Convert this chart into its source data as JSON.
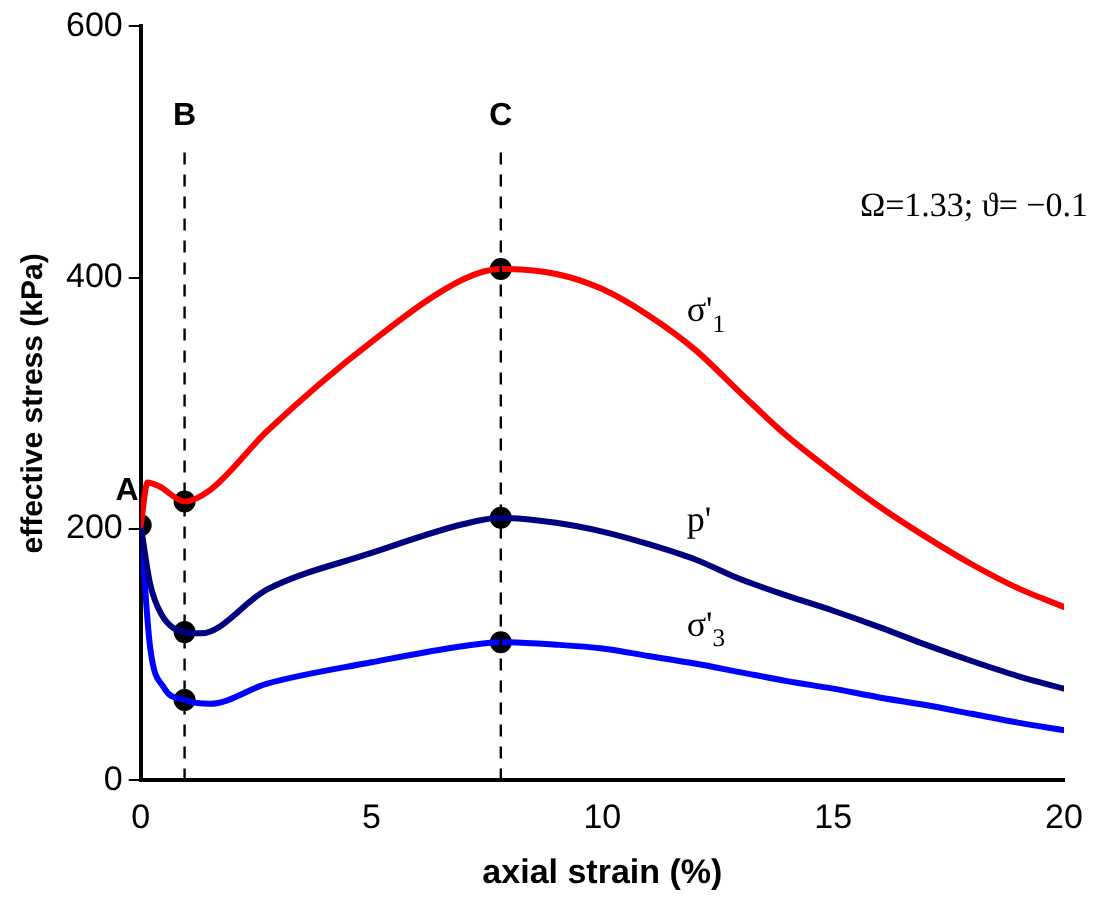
{
  "chart_data": {
    "type": "line",
    "xlabel": "axial strain (%)",
    "ylabel": "effective stress (kPa)",
    "xlim": [
      0,
      20
    ],
    "xticks": [
      0,
      5,
      10,
      15,
      20
    ],
    "ylim": [
      0,
      600
    ],
    "yticks": [
      0,
      200,
      400,
      600
    ],
    "grid": false,
    "legend": false,
    "marker": "none",
    "line_style": "solid",
    "series": [
      {
        "name": "σ'$_{1}$",
        "color": "#ff0000",
        "x": [
          0,
          0.15,
          0.4,
          0.95,
          1.5,
          2.74,
          5,
          7,
          7.8,
          9,
          10,
          11,
          12,
          13,
          14,
          15,
          16,
          17,
          18,
          19,
          20
        ],
        "values": [
          203,
          237,
          234,
          222,
          231,
          278,
          349,
          399,
          407,
          403,
          391,
          370,
          343,
          308,
          274,
          245,
          218,
          194,
          172,
          153,
          138
        ]
      },
      {
        "name": "p'",
        "color": "#000080",
        "x": [
          0,
          0.2,
          0.45,
          0.95,
          1.3,
          2.74,
          5,
          7,
          7.8,
          9,
          10,
          11,
          12,
          13,
          14,
          15,
          16,
          17,
          18,
          19,
          20
        ],
        "values": [
          203,
          157,
          132,
          118,
          117,
          152,
          181,
          204,
          209,
          205,
          198,
          188,
          176,
          160,
          147,
          135,
          122,
          108,
          95,
          83,
          73
        ]
      },
      {
        "name": "σ'$_{3}$",
        "color": "#0000ff",
        "x": [
          0,
          0.2,
          0.5,
          0.95,
          1.5,
          2.74,
          5,
          7,
          7.8,
          9,
          10,
          11,
          12,
          13,
          14,
          15,
          16,
          17,
          18,
          19,
          20
        ],
        "values": [
          203,
          107,
          74,
          64,
          61,
          77,
          94,
          107,
          110,
          108,
          105,
          99,
          93,
          86,
          79,
          73,
          66,
          60,
          53,
          46,
          40
        ]
      },
      {
        "type": "scatter",
        "color": "#000000",
        "marker": "circle",
        "x": [
          0,
          0.95,
          0.95,
          0.95,
          7.8,
          7.8,
          7.8
        ],
        "values": [
          203,
          222,
          118,
          64,
          407,
          209,
          110
        ]
      }
    ],
    "ref_lines": [
      {
        "axis": "x",
        "value": 0.95,
        "label": "B",
        "color": "#000000",
        "line_style": "dashed"
      },
      {
        "axis": "x",
        "value": 7.8,
        "label": "C",
        "color": "#000000",
        "line_style": "dashed"
      }
    ],
    "annotations": [
      {
        "text": "A",
        "x": 0,
        "y": 203
      },
      "Ω=1.33; ϑ= −0.1"
    ]
  }
}
